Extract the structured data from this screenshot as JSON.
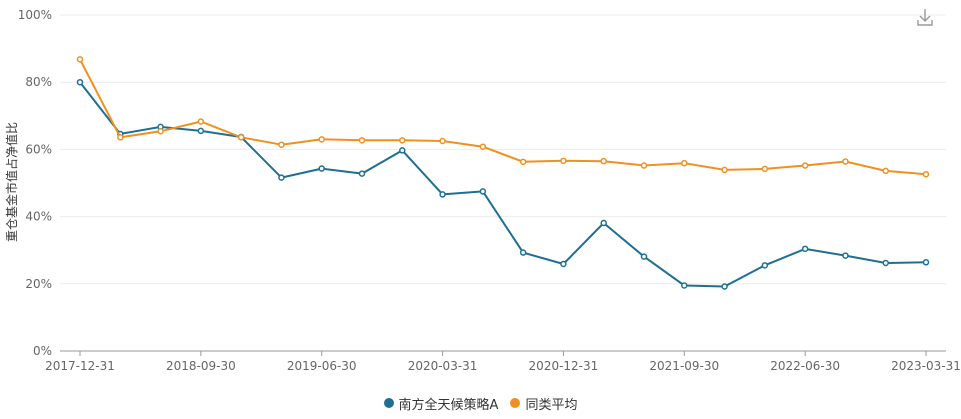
{
  "chart_data": {
    "type": "line",
    "ylabel": "重仓基金市值占净值比",
    "xlabel": "",
    "ylim": [
      0,
      100
    ],
    "y_ticks": [
      "0%",
      "20%",
      "40%",
      "60%",
      "80%",
      "100%"
    ],
    "x_tick_labels": [
      "2017-12-31",
      "2018-09-30",
      "2019-06-30",
      "2020-03-31",
      "2020-12-31",
      "2021-09-30",
      "2022-06-30",
      "2023-03-31"
    ],
    "x": [
      "2017-12-31",
      "2018-03-31",
      "2018-06-30",
      "2018-09-30",
      "2018-12-31",
      "2019-03-31",
      "2019-06-30",
      "2019-09-30",
      "2019-12-31",
      "2020-03-31",
      "2020-06-30",
      "2020-09-30",
      "2020-12-31",
      "2021-03-31",
      "2021-06-30",
      "2021-09-30",
      "2021-12-31",
      "2022-03-31",
      "2022-06-30",
      "2022-09-30",
      "2022-12-31",
      "2023-03-31"
    ],
    "series": [
      {
        "name": "南方全天候策略A",
        "color": "#1f6f94",
        "values": [
          80.0,
          64.6,
          66.7,
          65.5,
          63.7,
          51.6,
          54.3,
          52.8,
          59.7,
          46.6,
          47.5,
          29.3,
          25.9,
          38.1,
          28.1,
          19.5,
          19.2,
          25.5,
          30.4,
          28.4,
          26.2,
          26.4
        ]
      },
      {
        "name": "同类平均",
        "color": "#f0901f",
        "values": [
          86.8,
          63.6,
          65.4,
          68.3,
          63.6,
          61.4,
          63.0,
          62.7,
          62.7,
          62.5,
          60.8,
          56.3,
          56.6,
          56.5,
          55.2,
          55.9,
          53.9,
          54.2,
          55.2,
          56.4,
          53.6,
          52.6
        ]
      }
    ],
    "grid": true,
    "legend_position": "bottom"
  },
  "toolbar": {
    "download_icon": "download-icon"
  }
}
